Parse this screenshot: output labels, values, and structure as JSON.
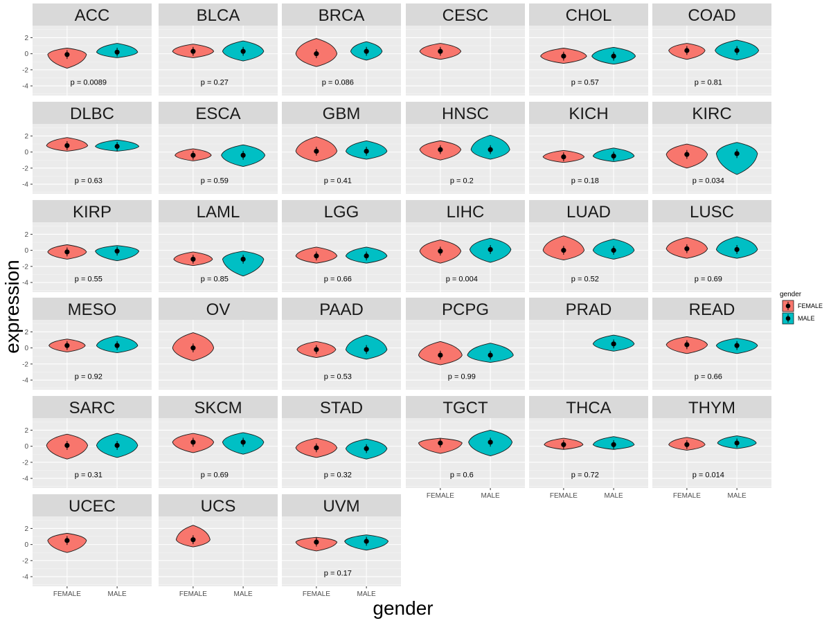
{
  "chart_data": {
    "type": "violin",
    "xlabel": "gender",
    "ylabel": "expression",
    "ylim": [
      -5.2,
      3.5
    ],
    "y_ticks": [
      2,
      0,
      -2,
      -4
    ],
    "x_categories": [
      "FEMALE",
      "MALE"
    ],
    "legend": {
      "title": "gender",
      "position": "right",
      "items": [
        {
          "label": "FEMALE",
          "color": "#F8766D"
        },
        {
          "label": "MALE",
          "color": "#00BFC4"
        }
      ]
    },
    "grid": true,
    "panels": [
      {
        "name": "ACC",
        "p": "p = 0.0089",
        "groups": [
          {
            "gender": "FEMALE",
            "median": -0.1,
            "min": -1.8,
            "max": 0.7,
            "width": 0.8
          },
          {
            "gender": "MALE",
            "median": 0.2,
            "min": -0.5,
            "max": 1.3,
            "width": 0.85
          }
        ]
      },
      {
        "name": "BLCA",
        "p": "p = 0.27",
        "groups": [
          {
            "gender": "FEMALE",
            "median": 0.3,
            "min": -0.5,
            "max": 1.2,
            "width": 0.85
          },
          {
            "gender": "MALE",
            "median": 0.3,
            "min": -0.9,
            "max": 1.6,
            "width": 0.85
          }
        ]
      },
      {
        "name": "BRCA",
        "p": "p = 0.086",
        "groups": [
          {
            "gender": "FEMALE",
            "median": 0.0,
            "min": -1.6,
            "max": 1.9,
            "width": 0.85
          },
          {
            "gender": "MALE",
            "median": 0.3,
            "min": -0.8,
            "max": 1.5,
            "width": 0.65
          }
        ]
      },
      {
        "name": "CESC",
        "p": "",
        "groups": [
          {
            "gender": "FEMALE",
            "median": 0.3,
            "min": -0.7,
            "max": 1.3,
            "width": 0.85
          }
        ]
      },
      {
        "name": "CHOL",
        "p": "p = 0.57",
        "groups": [
          {
            "gender": "FEMALE",
            "median": -0.3,
            "min": -1.2,
            "max": 0.7,
            "width": 0.95
          },
          {
            "gender": "MALE",
            "median": -0.3,
            "min": -1.3,
            "max": 0.8,
            "width": 0.9
          }
        ]
      },
      {
        "name": "COAD",
        "p": "p = 0.81",
        "groups": [
          {
            "gender": "FEMALE",
            "median": 0.4,
            "min": -0.7,
            "max": 1.3,
            "width": 0.75
          },
          {
            "gender": "MALE",
            "median": 0.4,
            "min": -0.8,
            "max": 1.7,
            "width": 0.9
          }
        ]
      },
      {
        "name": "DLBC",
        "p": "p = 0.63",
        "groups": [
          {
            "gender": "FEMALE",
            "median": 0.8,
            "min": 0.1,
            "max": 1.8,
            "width": 0.85
          },
          {
            "gender": "MALE",
            "median": 0.7,
            "min": 0.1,
            "max": 1.5,
            "width": 0.9
          }
        ]
      },
      {
        "name": "ESCA",
        "p": "p = 0.59",
        "groups": [
          {
            "gender": "FEMALE",
            "median": -0.4,
            "min": -1.1,
            "max": 0.4,
            "width": 0.75
          },
          {
            "gender": "MALE",
            "median": -0.4,
            "min": -1.8,
            "max": 0.9,
            "width": 0.9
          }
        ]
      },
      {
        "name": "GBM",
        "p": "p = 0.41",
        "groups": [
          {
            "gender": "FEMALE",
            "median": 0.1,
            "min": -1.2,
            "max": 1.9,
            "width": 0.85
          },
          {
            "gender": "MALE",
            "median": 0.1,
            "min": -0.9,
            "max": 1.4,
            "width": 0.85
          }
        ]
      },
      {
        "name": "HNSC",
        "p": "p = 0.2",
        "groups": [
          {
            "gender": "FEMALE",
            "median": 0.3,
            "min": -1.0,
            "max": 1.4,
            "width": 0.85
          },
          {
            "gender": "MALE",
            "median": 0.3,
            "min": -0.9,
            "max": 2.1,
            "width": 0.8
          }
        ]
      },
      {
        "name": "KICH",
        "p": "p = 0.18",
        "groups": [
          {
            "gender": "FEMALE",
            "median": -0.6,
            "min": -1.3,
            "max": 0.2,
            "width": 0.85
          },
          {
            "gender": "MALE",
            "median": -0.5,
            "min": -1.2,
            "max": 0.5,
            "width": 0.85
          }
        ]
      },
      {
        "name": "KIRC",
        "p": "p = 0.034",
        "groups": [
          {
            "gender": "FEMALE",
            "median": -0.3,
            "min": -2.0,
            "max": 1.0,
            "width": 0.85
          },
          {
            "gender": "MALE",
            "median": -0.2,
            "min": -2.8,
            "max": 1.2,
            "width": 0.85
          }
        ]
      },
      {
        "name": "KIRP",
        "p": "p = 0.55",
        "groups": [
          {
            "gender": "FEMALE",
            "median": -0.2,
            "min": -1.1,
            "max": 0.7,
            "width": 0.8
          },
          {
            "gender": "MALE",
            "median": -0.1,
            "min": -1.3,
            "max": 0.6,
            "width": 0.9
          }
        ]
      },
      {
        "name": "LAML",
        "p": "p = 0.85",
        "groups": [
          {
            "gender": "FEMALE",
            "median": -1.1,
            "min": -1.9,
            "max": -0.2,
            "width": 0.8
          },
          {
            "gender": "MALE",
            "median": -1.1,
            "min": -3.2,
            "max": -0.1,
            "width": 0.85
          }
        ]
      },
      {
        "name": "LGG",
        "p": "p = 0.66",
        "groups": [
          {
            "gender": "FEMALE",
            "median": -0.7,
            "min": -1.6,
            "max": 0.4,
            "width": 0.85
          },
          {
            "gender": "MALE",
            "median": -0.7,
            "min": -1.6,
            "max": 0.4,
            "width": 0.85
          }
        ]
      },
      {
        "name": "LIHC",
        "p": "p = 0.004",
        "groups": [
          {
            "gender": "FEMALE",
            "median": -0.1,
            "min": -1.6,
            "max": 1.3,
            "width": 0.85
          },
          {
            "gender": "MALE",
            "median": 0.1,
            "min": -1.5,
            "max": 1.5,
            "width": 0.85
          }
        ]
      },
      {
        "name": "LUAD",
        "p": "p = 0.52",
        "groups": [
          {
            "gender": "FEMALE",
            "median": 0.0,
            "min": -1.2,
            "max": 1.8,
            "width": 0.85
          },
          {
            "gender": "MALE",
            "median": 0.0,
            "min": -1.1,
            "max": 1.4,
            "width": 0.85
          }
        ]
      },
      {
        "name": "LUSC",
        "p": "p = 0.69",
        "groups": [
          {
            "gender": "FEMALE",
            "median": 0.2,
            "min": -1.0,
            "max": 1.6,
            "width": 0.85
          },
          {
            "gender": "MALE",
            "median": 0.1,
            "min": -1.0,
            "max": 1.7,
            "width": 0.85
          }
        ]
      },
      {
        "name": "MESO",
        "p": "p = 0.92",
        "groups": [
          {
            "gender": "FEMALE",
            "median": 0.3,
            "min": -0.5,
            "max": 1.1,
            "width": 0.75
          },
          {
            "gender": "MALE",
            "median": 0.3,
            "min": -0.6,
            "max": 1.5,
            "width": 0.85
          }
        ]
      },
      {
        "name": "OV",
        "p": "",
        "groups": [
          {
            "gender": "FEMALE",
            "median": 0.0,
            "min": -1.6,
            "max": 1.9,
            "width": 0.85
          }
        ]
      },
      {
        "name": "PAAD",
        "p": "p = 0.53",
        "groups": [
          {
            "gender": "FEMALE",
            "median": -0.2,
            "min": -1.2,
            "max": 0.8,
            "width": 0.8
          },
          {
            "gender": "MALE",
            "median": -0.2,
            "min": -1.4,
            "max": 1.6,
            "width": 0.85
          }
        ]
      },
      {
        "name": "PCPG",
        "p": "p = 0.99",
        "groups": [
          {
            "gender": "FEMALE",
            "median": -0.9,
            "min": -2.1,
            "max": 0.8,
            "width": 0.9
          },
          {
            "gender": "MALE",
            "median": -0.9,
            "min": -1.8,
            "max": 0.6,
            "width": 0.95
          }
        ]
      },
      {
        "name": "PRAD",
        "p": "",
        "groups": [
          {
            "gender": "MALE",
            "median": 0.5,
            "min": -0.4,
            "max": 1.6,
            "width": 0.85
          }
        ]
      },
      {
        "name": "READ",
        "p": "p = 0.66",
        "groups": [
          {
            "gender": "FEMALE",
            "median": 0.4,
            "min": -0.7,
            "max": 1.4,
            "width": 0.85
          },
          {
            "gender": "MALE",
            "median": 0.3,
            "min": -0.7,
            "max": 1.2,
            "width": 0.85
          }
        ]
      },
      {
        "name": "SARC",
        "p": "p = 0.31",
        "groups": [
          {
            "gender": "FEMALE",
            "median": 0.1,
            "min": -1.6,
            "max": 1.5,
            "width": 0.85
          },
          {
            "gender": "MALE",
            "median": 0.1,
            "min": -1.4,
            "max": 1.6,
            "width": 0.85
          }
        ]
      },
      {
        "name": "SKCM",
        "p": "p = 0.69",
        "groups": [
          {
            "gender": "FEMALE",
            "median": 0.5,
            "min": -0.8,
            "max": 1.6,
            "width": 0.85
          },
          {
            "gender": "MALE",
            "median": 0.5,
            "min": -1.0,
            "max": 1.7,
            "width": 0.85
          }
        ]
      },
      {
        "name": "STAD",
        "p": "p = 0.32",
        "groups": [
          {
            "gender": "FEMALE",
            "median": -0.2,
            "min": -1.4,
            "max": 1.0,
            "width": 0.85
          },
          {
            "gender": "MALE",
            "median": -0.3,
            "min": -1.6,
            "max": 0.9,
            "width": 0.85
          }
        ]
      },
      {
        "name": "TGCT",
        "p": "p = 0.6",
        "groups": [
          {
            "gender": "FEMALE",
            "median": 0.4,
            "min": -0.9,
            "max": 1.0,
            "width": 0.9
          },
          {
            "gender": "MALE",
            "median": 0.5,
            "min": -1.2,
            "max": 2.0,
            "width": 0.9
          }
        ]
      },
      {
        "name": "THCA",
        "p": "p = 0.72",
        "groups": [
          {
            "gender": "FEMALE",
            "median": 0.2,
            "min": -0.4,
            "max": 1.0,
            "width": 0.8
          },
          {
            "gender": "MALE",
            "median": 0.2,
            "min": -0.4,
            "max": 1.2,
            "width": 0.85
          }
        ]
      },
      {
        "name": "THYM",
        "p": "p = 0.014",
        "groups": [
          {
            "gender": "FEMALE",
            "median": 0.2,
            "min": -0.5,
            "max": 1.1,
            "width": 0.75
          },
          {
            "gender": "MALE",
            "median": 0.4,
            "min": -0.3,
            "max": 1.3,
            "width": 0.8
          }
        ]
      },
      {
        "name": "UCEC",
        "p": "",
        "groups": [
          {
            "gender": "FEMALE",
            "median": 0.5,
            "min": -1.0,
            "max": 1.4,
            "width": 0.8
          }
        ]
      },
      {
        "name": "UCS",
        "p": "",
        "groups": [
          {
            "gender": "FEMALE",
            "median": 0.6,
            "min": -0.3,
            "max": 2.4,
            "width": 0.7
          }
        ]
      },
      {
        "name": "UVM",
        "p": "p = 0.17",
        "groups": [
          {
            "gender": "FEMALE",
            "median": 0.3,
            "min": -0.8,
            "max": 0.9,
            "width": 0.85
          },
          {
            "gender": "MALE",
            "median": 0.4,
            "min": -0.7,
            "max": 1.2,
            "width": 0.9
          }
        ]
      }
    ]
  }
}
